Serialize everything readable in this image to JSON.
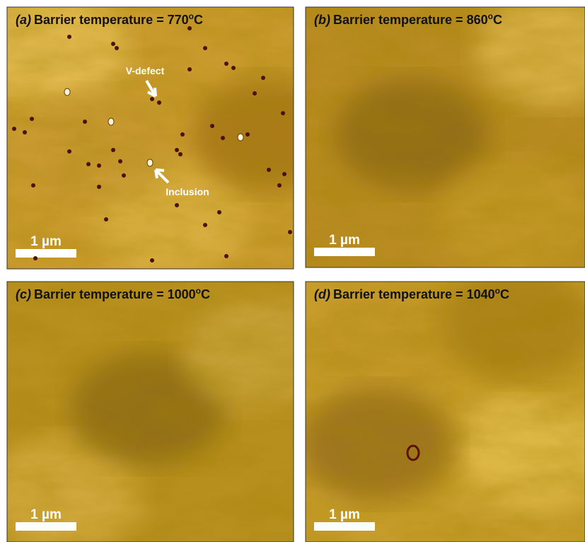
{
  "panels": [
    {
      "label": "(a)",
      "title": "Barrier temperature = 770",
      "sup": "o",
      "unit": "C",
      "scale_bar": "1 µm",
      "annotations": [
        "V-defect",
        "Inclusion"
      ]
    },
    {
      "label": "(b)",
      "title": "Barrier temperature = 860",
      "sup": "o",
      "unit": "C",
      "scale_bar": "1 µm"
    },
    {
      "label": "(c)",
      "title": "Barrier temperature = 1000",
      "sup": "o",
      "unit": "C",
      "scale_bar": "1 µm"
    },
    {
      "label": "(d)",
      "title": "Barrier temperature = 1040",
      "sup": "o",
      "unit": "C",
      "scale_bar": "1 µm"
    }
  ]
}
